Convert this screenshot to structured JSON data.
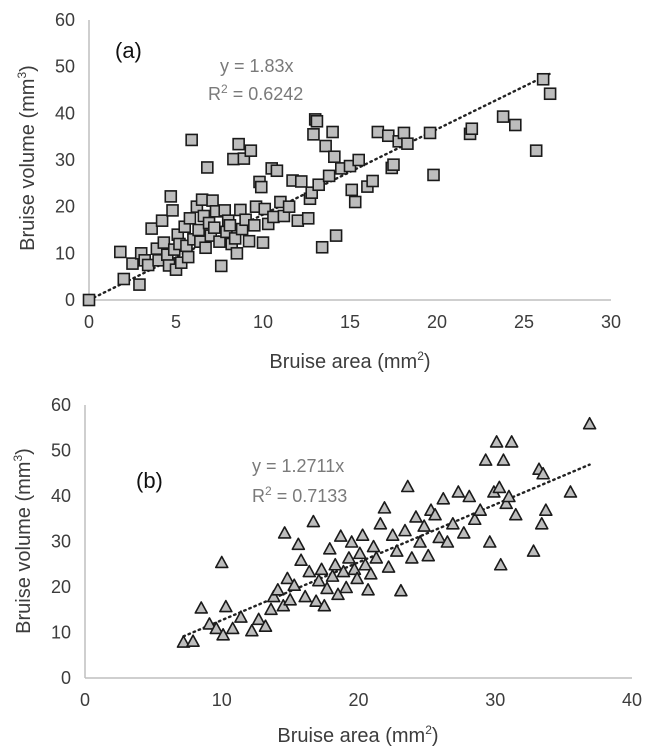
{
  "chart_data": [
    {
      "type": "scatter",
      "panel_label": "(a)",
      "xlabel": "Bruise area (mm",
      "xlabel_sup": "2",
      "xlabel_end": ")",
      "ylabel": "Bruise volume (mm",
      "ylabel_sup": "3",
      "ylabel_end": ")",
      "xlim": [
        0,
        30
      ],
      "ylim": [
        0,
        60
      ],
      "x_ticks": [
        "0",
        "5",
        "10",
        "15",
        "20",
        "25",
        "30"
      ],
      "y_ticks": [
        "0",
        "10",
        "20",
        "30",
        "40",
        "50",
        "60"
      ],
      "marker": "square",
      "trendline": {
        "type": "linear-through-origin",
        "slope": 1.83,
        "style": "dotted"
      },
      "equation": "y = 1.83x",
      "r_squared": "R",
      "r_squared_sup": "2",
      "r_squared_value": " = 0.6242",
      "grid": false,
      "points": [
        [
          0,
          0
        ],
        [
          1.8,
          10.3
        ],
        [
          2,
          4.5
        ],
        [
          2.5,
          7.8
        ],
        [
          2.9,
          3.3
        ],
        [
          3.0,
          10.0
        ],
        [
          3.2,
          8.5
        ],
        [
          3.4,
          7.5
        ],
        [
          3.6,
          15.3
        ],
        [
          3.9,
          11.0
        ],
        [
          4.0,
          8.5
        ],
        [
          4.2,
          17.0
        ],
        [
          4.3,
          12.3
        ],
        [
          4.5,
          9.7
        ],
        [
          4.6,
          7.4
        ],
        [
          4.7,
          22.2
        ],
        [
          4.8,
          19.2
        ],
        [
          4.9,
          10.8
        ],
        [
          5.0,
          6.5
        ],
        [
          5.1,
          14.0
        ],
        [
          5.2,
          12.0
        ],
        [
          5.3,
          8.0
        ],
        [
          5.5,
          15.7
        ],
        [
          5.6,
          11.6
        ],
        [
          5.7,
          9.2
        ],
        [
          5.8,
          17.5
        ],
        [
          5.9,
          34.3
        ],
        [
          6.0,
          13.0
        ],
        [
          6.2,
          20.0
        ],
        [
          6.3,
          15.0
        ],
        [
          6.4,
          12.5
        ],
        [
          6.5,
          21.5
        ],
        [
          6.6,
          18.0
        ],
        [
          6.7,
          11.2
        ],
        [
          6.8,
          28.4
        ],
        [
          6.9,
          16.5
        ],
        [
          7.0,
          13.8
        ],
        [
          7.1,
          21.3
        ],
        [
          7.2,
          15.5
        ],
        [
          7.3,
          19.0
        ],
        [
          7.5,
          12.5
        ],
        [
          7.6,
          7.3
        ],
        [
          7.8,
          19.2
        ],
        [
          7.9,
          14.6
        ],
        [
          8.0,
          17.0
        ],
        [
          8.1,
          16.0
        ],
        [
          8.2,
          12.0
        ],
        [
          8.3,
          30.2
        ],
        [
          8.4,
          13.2
        ],
        [
          8.5,
          10.0
        ],
        [
          8.6,
          33.4
        ],
        [
          8.7,
          19.3
        ],
        [
          8.8,
          15.2
        ],
        [
          8.9,
          30.3
        ],
        [
          9.0,
          17.2
        ],
        [
          9.2,
          12.6
        ],
        [
          9.3,
          32.0
        ],
        [
          9.5,
          16.0
        ],
        [
          9.6,
          20.0
        ],
        [
          9.8,
          25.3
        ],
        [
          9.9,
          24.2
        ],
        [
          10.0,
          12.3
        ],
        [
          10.1,
          19.5
        ],
        [
          10.3,
          16.3
        ],
        [
          10.5,
          28.2
        ],
        [
          10.6,
          17.8
        ],
        [
          10.8,
          27.7
        ],
        [
          11.0,
          21.0
        ],
        [
          11.2,
          18.0
        ],
        [
          11.5,
          20.0
        ],
        [
          11.7,
          25.6
        ],
        [
          12.0,
          17.0
        ],
        [
          12.2,
          25.4
        ],
        [
          12.6,
          17.5
        ],
        [
          12.7,
          21.7
        ],
        [
          12.8,
          23.0
        ],
        [
          12.9,
          35.5
        ],
        [
          13.0,
          38.7
        ],
        [
          13.1,
          38.3
        ],
        [
          13.2,
          24.7
        ],
        [
          13.4,
          11.3
        ],
        [
          13.6,
          33.0
        ],
        [
          13.8,
          26.6
        ],
        [
          14.0,
          36.0
        ],
        [
          14.1,
          30.7
        ],
        [
          14.2,
          13.8
        ],
        [
          14.5,
          28.2
        ],
        [
          15.0,
          28.7
        ],
        [
          15.1,
          23.6
        ],
        [
          15.3,
          21.0
        ],
        [
          15.5,
          30.0
        ],
        [
          16.0,
          24.3
        ],
        [
          16.3,
          25.5
        ],
        [
          16.6,
          36.0
        ],
        [
          17.2,
          35.2
        ],
        [
          17.4,
          28.3
        ],
        [
          17.5,
          29.0
        ],
        [
          17.8,
          34.0
        ],
        [
          18.1,
          35.8
        ],
        [
          18.3,
          33.5
        ],
        [
          19.6,
          35.8
        ],
        [
          19.8,
          26.8
        ],
        [
          21.9,
          35.6
        ],
        [
          22.0,
          36.7
        ],
        [
          23.8,
          39.3
        ],
        [
          24.5,
          37.5
        ],
        [
          25.7,
          32.0
        ],
        [
          26.1,
          47.3
        ],
        [
          26.5,
          44.2
        ]
      ]
    },
    {
      "type": "scatter",
      "panel_label": "(b)",
      "xlabel": "Bruise area (mm",
      "xlabel_sup": "2",
      "xlabel_end": ")",
      "ylabel": "Bruise volume (mm",
      "ylabel_sup": "3",
      "ylabel_end": ")",
      "xlim": [
        0,
        40
      ],
      "ylim": [
        0,
        60
      ],
      "x_ticks": [
        "0",
        "10",
        "20",
        "30",
        "40"
      ],
      "y_ticks": [
        "0",
        "10",
        "20",
        "30",
        "40",
        "50",
        "60"
      ],
      "marker": "triangle",
      "trendline": {
        "type": "linear-through-origin",
        "slope": 1.2711,
        "style": "dotted"
      },
      "equation": "y = 1.2711x",
      "r_squared": "R",
      "r_squared_sup": "2",
      "r_squared_value": " = 0.7133",
      "grid": false,
      "points": [
        [
          7.2,
          8.0
        ],
        [
          7.9,
          8.2
        ],
        [
          8.5,
          15.5
        ],
        [
          9.1,
          12.0
        ],
        [
          9.6,
          11.0
        ],
        [
          10.0,
          25.5
        ],
        [
          10.1,
          9.6
        ],
        [
          10.3,
          15.8
        ],
        [
          10.8,
          11.0
        ],
        [
          11.4,
          13.5
        ],
        [
          12.2,
          10.5
        ],
        [
          12.7,
          13.0
        ],
        [
          13.2,
          11.5
        ],
        [
          13.6,
          15.2
        ],
        [
          13.8,
          18.0
        ],
        [
          14.1,
          19.5
        ],
        [
          14.5,
          16.0
        ],
        [
          14.6,
          32.0
        ],
        [
          14.8,
          22.0
        ],
        [
          15.0,
          17.3
        ],
        [
          15.3,
          20.5
        ],
        [
          15.6,
          29.5
        ],
        [
          15.8,
          26.0
        ],
        [
          16.1,
          18.0
        ],
        [
          16.4,
          23.5
        ],
        [
          16.7,
          34.5
        ],
        [
          16.9,
          17.0
        ],
        [
          17.1,
          21.5
        ],
        [
          17.3,
          24.0
        ],
        [
          17.5,
          16.0
        ],
        [
          17.7,
          19.8
        ],
        [
          17.9,
          28.5
        ],
        [
          18.1,
          22.5
        ],
        [
          18.3,
          25.0
        ],
        [
          18.5,
          18.5
        ],
        [
          18.7,
          31.3
        ],
        [
          18.9,
          23.5
        ],
        [
          19.1,
          20.0
        ],
        [
          19.3,
          26.5
        ],
        [
          19.5,
          30.0
        ],
        [
          19.7,
          24.0
        ],
        [
          19.9,
          22.0
        ],
        [
          20.1,
          27.5
        ],
        [
          20.3,
          31.5
        ],
        [
          20.5,
          25.0
        ],
        [
          20.7,
          19.5
        ],
        [
          20.9,
          23.0
        ],
        [
          21.1,
          29.0
        ],
        [
          21.3,
          26.5
        ],
        [
          21.6,
          34.0
        ],
        [
          21.9,
          37.5
        ],
        [
          22.2,
          24.5
        ],
        [
          22.5,
          31.5
        ],
        [
          22.8,
          28.0
        ],
        [
          23.1,
          19.3
        ],
        [
          23.4,
          32.5
        ],
        [
          23.6,
          42.2
        ],
        [
          23.9,
          26.5
        ],
        [
          24.2,
          35.5
        ],
        [
          24.5,
          30.0
        ],
        [
          24.8,
          33.5
        ],
        [
          25.1,
          27.0
        ],
        [
          25.3,
          37.0
        ],
        [
          25.6,
          36.0
        ],
        [
          25.9,
          31.0
        ],
        [
          26.2,
          39.5
        ],
        [
          26.5,
          30.0
        ],
        [
          26.9,
          34.0
        ],
        [
          27.3,
          41.0
        ],
        [
          27.7,
          32.0
        ],
        [
          28.1,
          40.0
        ],
        [
          28.5,
          35.0
        ],
        [
          28.9,
          37.0
        ],
        [
          29.3,
          48.0
        ],
        [
          29.6,
          30.0
        ],
        [
          29.9,
          41.0
        ],
        [
          30.1,
          52.0
        ],
        [
          30.3,
          42.0
        ],
        [
          30.4,
          25.0
        ],
        [
          30.6,
          48.0
        ],
        [
          30.8,
          38.5
        ],
        [
          31.0,
          40.0
        ],
        [
          31.2,
          52.0
        ],
        [
          31.5,
          36.0
        ],
        [
          32.8,
          28.0
        ],
        [
          33.2,
          46.0
        ],
        [
          33.4,
          34.0
        ],
        [
          33.5,
          45.0
        ],
        [
          33.7,
          37.0
        ],
        [
          35.5,
          41.0
        ],
        [
          36.9,
          56.0
        ]
      ]
    }
  ]
}
